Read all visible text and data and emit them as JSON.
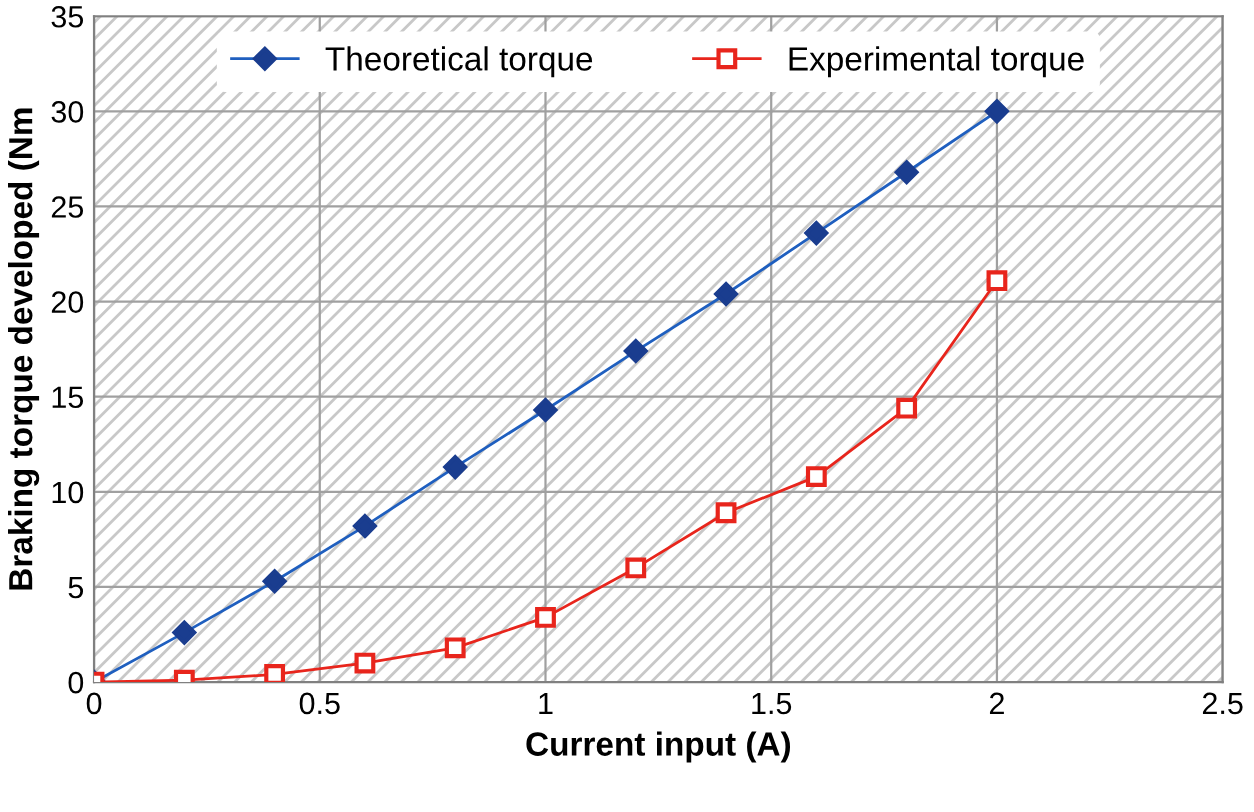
{
  "chart_data": {
    "type": "line",
    "xlabel": "Current input (A)",
    "ylabel": "Braking torque developed (Nm",
    "x": [
      0,
      0.2,
      0.4,
      0.6,
      0.8,
      1.0,
      1.2,
      1.4,
      1.6,
      1.8,
      2.0
    ],
    "series": [
      {
        "name": "Theoretical torque",
        "color": "#1f5fbf",
        "marker": "diamond",
        "values": [
          0,
          2.6,
          5.3,
          8.2,
          11.3,
          14.3,
          17.4,
          20.4,
          23.6,
          26.8,
          30.0
        ]
      },
      {
        "name": "Experimental torque",
        "color": "#e8251c",
        "marker": "square",
        "values": [
          0,
          0.1,
          0.4,
          1.0,
          1.8,
          3.4,
          6.0,
          8.9,
          10.8,
          14.4,
          21.1
        ]
      }
    ],
    "line_style": "solid",
    "xlim": [
      0,
      2.5
    ],
    "xticks": [
      0,
      0.5,
      1,
      1.5,
      2,
      2.5
    ],
    "ylim": [
      0,
      35
    ],
    "yticks": [
      0,
      5,
      10,
      15,
      20,
      25,
      30,
      35
    ],
    "grid": true,
    "legend": "top"
  }
}
